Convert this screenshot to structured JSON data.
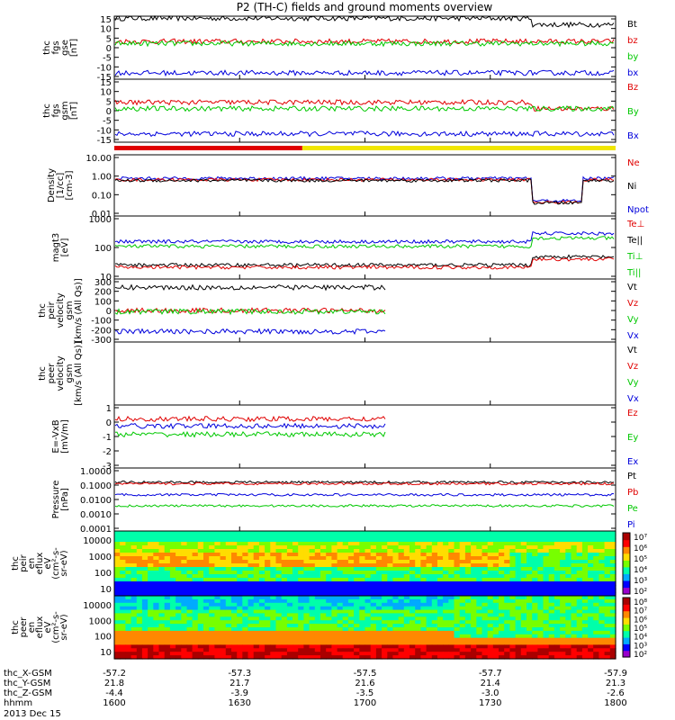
{
  "colors": {
    "black": "#000000",
    "red": "#e00000",
    "green": "#00c800",
    "blue": "#0000dc",
    "yellow": "#f0e600"
  },
  "chart_data": {
    "type": "line",
    "title": "P2 (TH-C) fields and ground moments overview",
    "date": "2013 Dec 15",
    "xaxis": {
      "rows": [
        {
          "label": "thc_X-GSM",
          "values": [
            "-57.2",
            "-57.3",
            "-57.5",
            "-57.7",
            "-57.9"
          ]
        },
        {
          "label": "thc_Y-GSM",
          "values": [
            "21.8",
            "21.7",
            "21.6",
            "21.4",
            "21.3"
          ]
        },
        {
          "label": "thc_Z-GSM",
          "values": [
            "-4.4",
            "-3.9",
            "-3.5",
            "-3.0",
            "-2.6"
          ]
        },
        {
          "label": "hhmm",
          "values": [
            "1600",
            "1630",
            "1700",
            "1730",
            "1800"
          ]
        }
      ],
      "ticks_hhmm": [
        1600,
        1630,
        1700,
        1730,
        1800
      ]
    },
    "mode_bar": {
      "red_until": "1645",
      "yellow_from": "1645"
    },
    "panels": [
      {
        "ylabel": [
          "thc",
          "fgs",
          "gse",
          "[nT]"
        ],
        "ticks": [
          "15",
          "10",
          "5",
          "0",
          "-5",
          "-10",
          "-15"
        ],
        "ylim": [
          -15,
          15
        ],
        "legend": [
          {
            "name": "Bt",
            "color": "black"
          },
          {
            "name": "bz",
            "color": "red"
          },
          {
            "name": "by",
            "color": "green"
          },
          {
            "name": "bx",
            "color": "blue"
          }
        ],
        "series": [
          {
            "color": "black",
            "base": 14
          },
          {
            "color": "red",
            "base": 3
          },
          {
            "color": "green",
            "base": 2
          },
          {
            "color": "blue",
            "base": -12
          }
        ]
      },
      {
        "ylabel": [
          "thc",
          "fgs",
          "gsm",
          "[nT]"
        ],
        "ticks": [
          "15",
          "10",
          "5",
          "0",
          "-5",
          "-10",
          "-15"
        ],
        "ylim": [
          -15,
          15
        ],
        "legend": [
          {
            "name": "Bz",
            "color": "red"
          },
          {
            "name": "By",
            "color": "green"
          },
          {
            "name": "Bx",
            "color": "blue"
          }
        ],
        "series": [
          {
            "color": "red",
            "base": 4
          },
          {
            "color": "green",
            "base": 1
          },
          {
            "color": "blue",
            "base": -11
          }
        ]
      },
      {
        "ylabel": [
          "Density",
          "[1/cc]",
          "[cm-3]"
        ],
        "ticks": [
          "10.00",
          "1.00",
          "0.10",
          "0.01"
        ],
        "ylim": [
          0.01,
          10
        ],
        "log": true,
        "legend": [
          {
            "name": "Ne",
            "color": "red"
          },
          {
            "name": "Ni",
            "color": "black"
          },
          {
            "name": "Npot",
            "color": "blue"
          }
        ],
        "series": [
          {
            "color": "blue",
            "base": 0.7
          },
          {
            "color": "red",
            "base": 0.6
          },
          {
            "color": "black",
            "base": 0.55
          }
        ]
      },
      {
        "ylabel": [
          "magt3",
          "[eV]"
        ],
        "ticks": [
          "1000",
          "100",
          "10"
        ],
        "ylim": [
          10,
          5000
        ],
        "log": true,
        "legend": [
          {
            "name": "Te⊥",
            "color": "red"
          },
          {
            "name": "Te||",
            "color": "black"
          },
          {
            "name": "Ti⊥",
            "color": "green"
          },
          {
            "name": "Ti||",
            "color": "green"
          }
        ],
        "series": [
          {
            "color": "blue",
            "base": 2.6
          },
          {
            "color": "green",
            "base": 2.4
          },
          {
            "color": "black",
            "base": 1.6
          },
          {
            "color": "red",
            "base": 1.5
          }
        ]
      },
      {
        "ylabel": [
          "thc",
          "peir",
          "velocity",
          "gsm",
          "[km/s (All Qs)]"
        ],
        "ticks": [
          "300",
          "200",
          "100",
          "0",
          "-100",
          "-200",
          "-300"
        ],
        "ylim": [
          -300,
          300
        ],
        "legend": [
          {
            "name": "Vt",
            "color": "black"
          },
          {
            "name": "Vz",
            "color": "red"
          },
          {
            "name": "Vy",
            "color": "green"
          },
          {
            "name": "Vx",
            "color": "blue"
          }
        ],
        "series": [
          {
            "color": "black",
            "base": 220
          },
          {
            "color": "red",
            "base": 0
          },
          {
            "color": "green",
            "base": -10
          },
          {
            "color": "blue",
            "base": -200
          }
        ]
      },
      {
        "ylabel": [
          "thc",
          "peer",
          "velocity",
          "gsm",
          "[km/s (All Qs)]"
        ],
        "ticks": [],
        "ylim": [
          -300,
          300
        ],
        "legend": [
          {
            "name": "Vt",
            "color": "black"
          },
          {
            "name": "Vz",
            "color": "red"
          },
          {
            "name": "Vy",
            "color": "green"
          },
          {
            "name": "Vx",
            "color": "blue"
          }
        ],
        "series": []
      },
      {
        "ylabel": [
          "E=-VxB",
          "[mV/m]"
        ],
        "ticks": [
          "1",
          "0",
          "-1",
          "-2",
          "-3"
        ],
        "ylim": [
          -3,
          1.5
        ],
        "legend": [
          {
            "name": "Ez",
            "color": "red"
          },
          {
            "name": "Ey",
            "color": "green"
          },
          {
            "name": "Ex",
            "color": "blue"
          }
        ],
        "series": [
          {
            "color": "red",
            "base": 0.5
          },
          {
            "color": "blue",
            "base": 0
          },
          {
            "color": "green",
            "base": -0.6
          }
        ]
      },
      {
        "ylabel": [
          "Pressure",
          "[nPa]"
        ],
        "ticks": [
          "1.0000",
          "0.1000",
          "0.0100",
          "0.0010",
          "0.0001"
        ],
        "ylim": [
          0.0001,
          1
        ],
        "log": true,
        "legend": [
          {
            "name": "Pt",
            "color": "black"
          },
          {
            "name": "Pb",
            "color": "red"
          },
          {
            "name": "Pe",
            "color": "green"
          },
          {
            "name": "Pi",
            "color": "blue"
          }
        ],
        "series": [
          {
            "color": "black",
            "base": -0.9
          },
          {
            "color": "red",
            "base": -1.0
          },
          {
            "color": "blue",
            "base": -1.7
          },
          {
            "color": "green",
            "base": -2.4
          }
        ]
      }
    ],
    "spectrograms": [
      {
        "ylabel": [
          "thc",
          "peir",
          "en",
          "eflux",
          "eV",
          "(cm²-s-",
          "sr-eV)"
        ],
        "ticks": [
          "10000",
          "1000",
          "100",
          "10"
        ]
      },
      {
        "ylabel": [
          "thc",
          "peer",
          "en",
          "eflux",
          "eV",
          "(cm²-s-",
          "sr-eV)"
        ],
        "ticks": [
          "10000",
          "1000",
          "100",
          "10"
        ]
      }
    ],
    "colorbars": [
      {
        "ticks": [
          "10⁷",
          "10⁶",
          "10⁵",
          "10⁴",
          "10³",
          "10²"
        ]
      },
      {
        "ticks": [
          "10⁸",
          "10⁷",
          "10⁶",
          "10⁵",
          "10⁴",
          "10³",
          "10²"
        ]
      }
    ]
  }
}
